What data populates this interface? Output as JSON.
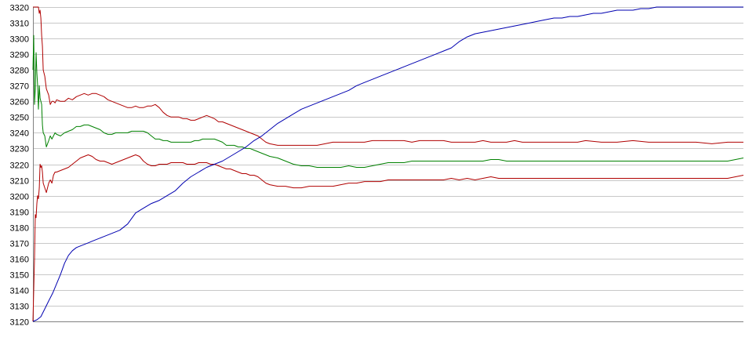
{
  "chart_data": {
    "type": "line",
    "title": "",
    "xlabel": "",
    "ylabel": "",
    "ylim": [
      3120,
      3320
    ],
    "yticks": [
      3120,
      3130,
      3140,
      3150,
      3160,
      3170,
      3180,
      3190,
      3200,
      3210,
      3220,
      3230,
      3240,
      3250,
      3260,
      3270,
      3280,
      3290,
      3300,
      3310,
      3320
    ],
    "grid": true,
    "legend": "none",
    "colors": {
      "grid": "#c8c8c8",
      "axis": "#808080",
      "upper": "#b00000",
      "middle": "#008000",
      "lower": "#b00000",
      "trend": "#0000b0"
    },
    "series": [
      {
        "key": "upper",
        "x": [
          0,
          3,
          5,
          6,
          7,
          8,
          9,
          10,
          11,
          12,
          13,
          15,
          17,
          20,
          22,
          24,
          26,
          28,
          30,
          35,
          40,
          45,
          50,
          55,
          60,
          65,
          70,
          75,
          80,
          85,
          90,
          95,
          100,
          105,
          110,
          115,
          120,
          125,
          130,
          135,
          140,
          145,
          150,
          155,
          160,
          165,
          170,
          175,
          180,
          185,
          190,
          195,
          200,
          205,
          210,
          215,
          220,
          225,
          230,
          235,
          240,
          245,
          250,
          255,
          260,
          265,
          270,
          275,
          280,
          285,
          290,
          295,
          300,
          310,
          320,
          330,
          340,
          350,
          360,
          370,
          380,
          390,
          400,
          410,
          420,
          430,
          440,
          450,
          460,
          470,
          480,
          490,
          500,
          510,
          520,
          530,
          540,
          550,
          560,
          570,
          580,
          590,
          600,
          610,
          620,
          630,
          640,
          650,
          660,
          670,
          680,
          690,
          700,
          720,
          740,
          760,
          780,
          800,
          820,
          840,
          860,
          880,
          900
        ],
        "values": [
          3320,
          3320,
          3320,
          3320,
          3320,
          3316,
          3318,
          3313,
          3302,
          3295,
          3280,
          3276,
          3268,
          3264,
          3258,
          3260,
          3260,
          3259,
          3261,
          3260,
          3260,
          3262,
          3261,
          3263,
          3264,
          3265,
          3264,
          3265,
          3265,
          3264,
          3263,
          3261,
          3260,
          3259,
          3258,
          3257,
          3256,
          3256,
          3257,
          3256,
          3256,
          3257,
          3257,
          3258,
          3256,
          3253,
          3251,
          3250,
          3250,
          3250,
          3249,
          3249,
          3248,
          3248,
          3249,
          3250,
          3251,
          3250,
          3249,
          3247,
          3247,
          3246,
          3245,
          3244,
          3243,
          3242,
          3241,
          3240,
          3239,
          3238,
          3236,
          3234,
          3233,
          3232,
          3232,
          3232,
          3232,
          3232,
          3232,
          3233,
          3234,
          3234,
          3234,
          3234,
          3234,
          3235,
          3235,
          3235,
          3235,
          3235,
          3234,
          3235,
          3235,
          3235,
          3235,
          3234,
          3234,
          3234,
          3234,
          3235,
          3234,
          3234,
          3234,
          3235,
          3234,
          3234,
          3234,
          3234,
          3234,
          3234,
          3234,
          3234,
          3235,
          3234,
          3234,
          3235,
          3234,
          3234,
          3234,
          3234,
          3233,
          3234,
          3234
        ]
      },
      {
        "key": "middle",
        "x": [
          0,
          1,
          2,
          3,
          4,
          5,
          6,
          7,
          8,
          9,
          10,
          11,
          12,
          13,
          15,
          17,
          20,
          22,
          24,
          26,
          28,
          30,
          35,
          40,
          45,
          50,
          55,
          60,
          65,
          70,
          75,
          80,
          85,
          90,
          95,
          100,
          105,
          110,
          115,
          120,
          125,
          130,
          135,
          140,
          145,
          150,
          155,
          160,
          165,
          170,
          175,
          180,
          185,
          190,
          195,
          200,
          205,
          210,
          215,
          220,
          225,
          230,
          235,
          240,
          245,
          250,
          255,
          260,
          265,
          270,
          275,
          280,
          285,
          290,
          295,
          300,
          310,
          320,
          330,
          340,
          350,
          360,
          370,
          380,
          390,
          400,
          410,
          420,
          430,
          440,
          450,
          460,
          470,
          480,
          490,
          500,
          510,
          520,
          530,
          540,
          550,
          560,
          570,
          580,
          590,
          600,
          620,
          640,
          660,
          680,
          700,
          720,
          740,
          760,
          780,
          800,
          820,
          840,
          860,
          880,
          900
        ],
        "values": [
          3280,
          3302,
          3258,
          3268,
          3291,
          3278,
          3270,
          3255,
          3270,
          3262,
          3260,
          3258,
          3245,
          3240,
          3238,
          3231,
          3235,
          3238,
          3236,
          3238,
          3240,
          3239,
          3238,
          3240,
          3241,
          3242,
          3244,
          3244,
          3245,
          3245,
          3244,
          3243,
          3242,
          3240,
          3239,
          3239,
          3240,
          3240,
          3240,
          3240,
          3241,
          3241,
          3241,
          3241,
          3240,
          3238,
          3236,
          3236,
          3235,
          3235,
          3234,
          3234,
          3234,
          3234,
          3234,
          3234,
          3235,
          3235,
          3236,
          3236,
          3236,
          3236,
          3235,
          3234,
          3232,
          3232,
          3232,
          3231,
          3231,
          3230,
          3230,
          3229,
          3228,
          3227,
          3226,
          3225,
          3224,
          3222,
          3220,
          3219,
          3219,
          3218,
          3218,
          3218,
          3218,
          3219,
          3218,
          3218,
          3219,
          3220,
          3221,
          3221,
          3221,
          3222,
          3222,
          3222,
          3222,
          3222,
          3222,
          3222,
          3222,
          3222,
          3222,
          3223,
          3223,
          3222,
          3222,
          3222,
          3222,
          3222,
          3222,
          3222,
          3222,
          3222,
          3222,
          3222,
          3222,
          3222,
          3222,
          3222,
          3224
        ]
      },
      {
        "key": "lower",
        "x": [
          0,
          1,
          2,
          3,
          4,
          5,
          6,
          7,
          8,
          9,
          10,
          11,
          12,
          13,
          15,
          17,
          20,
          22,
          24,
          26,
          28,
          30,
          35,
          40,
          45,
          50,
          55,
          60,
          65,
          70,
          75,
          80,
          85,
          90,
          95,
          100,
          105,
          110,
          115,
          120,
          125,
          130,
          135,
          140,
          145,
          150,
          155,
          160,
          165,
          170,
          175,
          180,
          185,
          190,
          195,
          200,
          205,
          210,
          215,
          220,
          225,
          230,
          235,
          240,
          245,
          250,
          255,
          260,
          265,
          270,
          275,
          280,
          285,
          290,
          295,
          300,
          310,
          320,
          330,
          340,
          350,
          360,
          370,
          380,
          390,
          400,
          410,
          420,
          430,
          440,
          450,
          460,
          470,
          480,
          490,
          500,
          510,
          520,
          530,
          540,
          550,
          560,
          570,
          580,
          590,
          600,
          620,
          640,
          660,
          680,
          700,
          720,
          740,
          760,
          780,
          800,
          820,
          840,
          860,
          880,
          900
        ],
        "values": [
          3120,
          3140,
          3160,
          3188,
          3186,
          3195,
          3200,
          3198,
          3205,
          3220,
          3218,
          3219,
          3215,
          3208,
          3205,
          3202,
          3208,
          3210,
          3208,
          3213,
          3215,
          3215,
          3216,
          3217,
          3218,
          3220,
          3222,
          3224,
          3225,
          3226,
          3225,
          3223,
          3222,
          3222,
          3221,
          3220,
          3221,
          3222,
          3223,
          3224,
          3225,
          3226,
          3225,
          3222,
          3220,
          3219,
          3219,
          3220,
          3220,
          3220,
          3221,
          3221,
          3221,
          3221,
          3220,
          3220,
          3220,
          3221,
          3221,
          3221,
          3220,
          3220,
          3219,
          3218,
          3217,
          3217,
          3216,
          3215,
          3214,
          3214,
          3213,
          3213,
          3212,
          3210,
          3208,
          3207,
          3206,
          3206,
          3205,
          3205,
          3206,
          3206,
          3206,
          3206,
          3207,
          3208,
          3208,
          3209,
          3209,
          3209,
          3210,
          3210,
          3210,
          3210,
          3210,
          3210,
          3210,
          3210,
          3211,
          3210,
          3211,
          3210,
          3211,
          3212,
          3211,
          3211,
          3211,
          3211,
          3211,
          3211,
          3211,
          3211,
          3211,
          3211,
          3211,
          3211,
          3211,
          3211,
          3211,
          3211,
          3213
        ]
      },
      {
        "key": "trend",
        "x": [
          0,
          5,
          10,
          15,
          20,
          25,
          30,
          35,
          40,
          45,
          50,
          55,
          60,
          65,
          70,
          75,
          80,
          90,
          100,
          110,
          120,
          130,
          140,
          150,
          160,
          170,
          180,
          190,
          200,
          210,
          220,
          230,
          240,
          250,
          260,
          270,
          280,
          290,
          300,
          310,
          320,
          330,
          340,
          350,
          360,
          370,
          380,
          390,
          400,
          410,
          420,
          430,
          440,
          450,
          460,
          470,
          480,
          490,
          500,
          510,
          520,
          530,
          540,
          550,
          560,
          570,
          580,
          590,
          600,
          610,
          620,
          630,
          640,
          650,
          660,
          670,
          680,
          690,
          700,
          710,
          720,
          730,
          740,
          750,
          760,
          770,
          780,
          790,
          800,
          810,
          820,
          830,
          840,
          850,
          860,
          870,
          880,
          890,
          900
        ],
        "values": [
          3120,
          3121,
          3123,
          3128,
          3133,
          3138,
          3144,
          3150,
          3157,
          3162,
          3165,
          3167,
          3168,
          3169,
          3170,
          3171,
          3172,
          3174,
          3176,
          3178,
          3182,
          3189,
          3192,
          3195,
          3197,
          3200,
          3203,
          3208,
          3212,
          3215,
          3218,
          3220,
          3222,
          3225,
          3228,
          3231,
          3235,
          3238,
          3242,
          3246,
          3249,
          3252,
          3255,
          3257,
          3259,
          3261,
          3263,
          3265,
          3267,
          3270,
          3272,
          3274,
          3276,
          3278,
          3280,
          3282,
          3284,
          3286,
          3288,
          3290,
          3292,
          3294,
          3298,
          3301,
          3303,
          3304,
          3305,
          3306,
          3307,
          3308,
          3309,
          3310,
          3311,
          3312,
          3313,
          3313,
          3314,
          3314,
          3315,
          3316,
          3316,
          3317,
          3318,
          3318,
          3318,
          3319,
          3319,
          3320,
          3320,
          3320,
          3320,
          3320,
          3320,
          3320,
          3320,
          3320,
          3320,
          3320,
          3320
        ]
      }
    ],
    "x_range": [
      0,
      900
    ]
  }
}
